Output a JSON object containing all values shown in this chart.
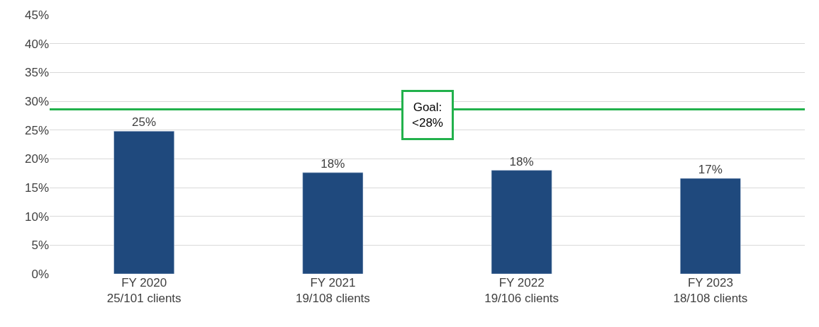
{
  "chart_data": {
    "type": "bar",
    "categories": [
      "FY 2020\n25/101 clients",
      "FY 2021\n19/108 clients",
      "FY 2022\n19/106 clients",
      "FY 2023\n18/108 clients"
    ],
    "values": [
      24.8,
      17.6,
      18.0,
      16.6
    ],
    "value_labels": [
      "25%",
      "18%",
      "18%",
      "17%"
    ],
    "color": "#1f497d",
    "ylim": [
      0,
      45
    ],
    "yticks": [
      {
        "value": 0,
        "label": "0%"
      },
      {
        "value": 5,
        "label": "5%"
      },
      {
        "value": 10,
        "label": "10%"
      },
      {
        "value": 15,
        "label": "15%"
      },
      {
        "value": 20,
        "label": "20%"
      },
      {
        "value": 25,
        "label": "25%"
      },
      {
        "value": 30,
        "label": "30%"
      },
      {
        "value": 35,
        "label": "35%"
      },
      {
        "value": 40,
        "label": "40%"
      },
      {
        "value": 45,
        "label": "45%"
      }
    ],
    "grid": "y",
    "ref_lines": [
      {
        "axis": "y",
        "value": 28.6,
        "label": "Goal:\n<28%",
        "color": "#22b14c"
      }
    ]
  }
}
